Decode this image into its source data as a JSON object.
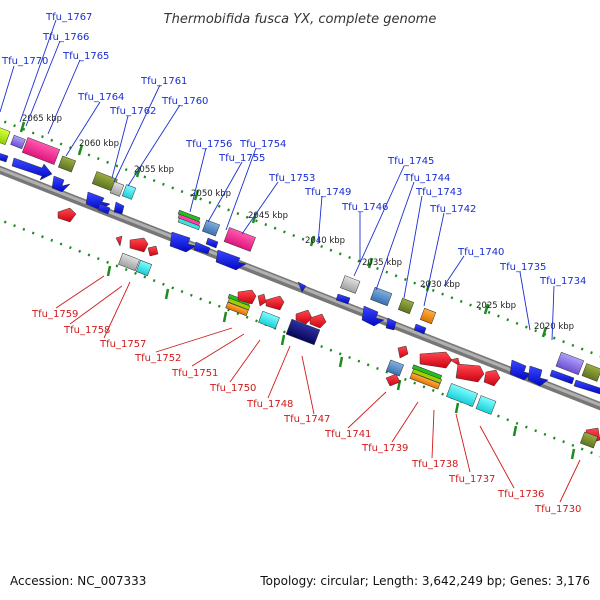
{
  "title": "Thermobifida fusca YX, complete genome",
  "footer": {
    "accession": "Accession: NC_007333",
    "summary": "Topology: circular; Length: 3,642,249 bp; Genes: 3,176"
  },
  "colors": {
    "forward_label": "#1a2fd0",
    "reverse_label": "#d01a1a",
    "backbone": "#888888",
    "tick": "#2a8a2a",
    "gene_blue": "#0a14e0",
    "gene_red": "#e8141e"
  },
  "kbp_labels": [
    "2065 kbp",
    "2060 kbp",
    "2055 kbp",
    "2050 kbp",
    "2045 kbp",
    "2040 kbp",
    "2035 kbp",
    "2030 kbp",
    "2025 kbp",
    "2020 kbp"
  ],
  "forward_genes": [
    "Tfu_1767",
    "Tfu_1766",
    "Tfu_1770",
    "Tfu_1765",
    "Tfu_1764",
    "Tfu_1761",
    "Tfu_1762",
    "Tfu_1760",
    "Tfu_1756",
    "Tfu_1754",
    "Tfu_1755",
    "Tfu_1753",
    "Tfu_1749",
    "Tfu_1745",
    "Tfu_1744",
    "Tfu_1743",
    "Tfu_1746",
    "Tfu_1742",
    "Tfu_1740",
    "Tfu_1735",
    "Tfu_1734"
  ],
  "reverse_genes": [
    "Tfu_1759",
    "Tfu_1758",
    "Tfu_1757",
    "Tfu_1752",
    "Tfu_1751",
    "Tfu_1750",
    "Tfu_1748",
    "Tfu_1747",
    "Tfu_1741",
    "Tfu_1739",
    "Tfu_1738",
    "Tfu_1737",
    "Tfu_1736",
    "Tfu_1730"
  ]
}
